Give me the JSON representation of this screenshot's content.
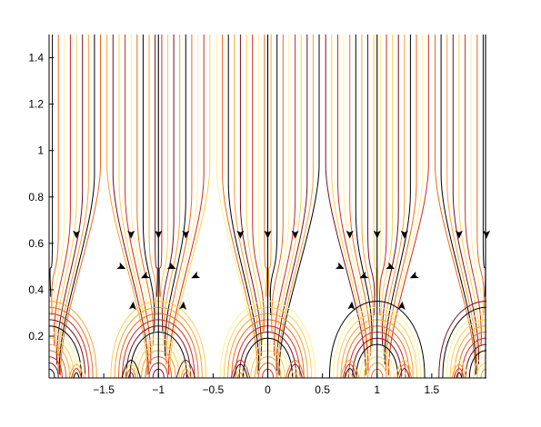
{
  "chart_data": {
    "type": "line",
    "title": "",
    "xlabel": "",
    "ylabel": "",
    "xlim": [
      -2,
      2
    ],
    "ylim": [
      0.02,
      1.5
    ],
    "grid": false,
    "legend": "none",
    "x_ticks": [
      {
        "value": -1.5,
        "label": "−1.5"
      },
      {
        "value": -1,
        "label": "−1"
      },
      {
        "value": -0.5,
        "label": "−0.5"
      },
      {
        "value": 0,
        "label": "0"
      },
      {
        "value": 0.5,
        "label": "0.5"
      },
      {
        "value": 1,
        "label": "1"
      },
      {
        "value": 1.5,
        "label": "1.5"
      }
    ],
    "y_ticks": [
      {
        "value": 0.2,
        "label": "0.2"
      },
      {
        "value": 0.4,
        "label": "0.4"
      },
      {
        "value": 0.6,
        "label": "0.6"
      },
      {
        "value": 0.8,
        "label": "0.8"
      },
      {
        "value": 1,
        "label": "1"
      },
      {
        "value": 1.2,
        "label": "1.2"
      },
      {
        "value": 1.4,
        "label": "1.4"
      }
    ],
    "vertical_separatrices_x": [
      -1,
      0,
      1,
      2
    ],
    "spiral_sinks": [
      {
        "x": -1.23,
        "y": 0.43
      },
      {
        "x": -0.77,
        "y": 0.43
      },
      {
        "x": 0.77,
        "y": 0.43
      },
      {
        "x": 1.23,
        "y": 0.43
      }
    ],
    "colormap": [
      "#000000",
      "#7a0d1e",
      "#d42a1c",
      "#f06a1c",
      "#f9a22e",
      "#fbd14a",
      "#fff08f"
    ],
    "arrow_color": "#000000"
  }
}
